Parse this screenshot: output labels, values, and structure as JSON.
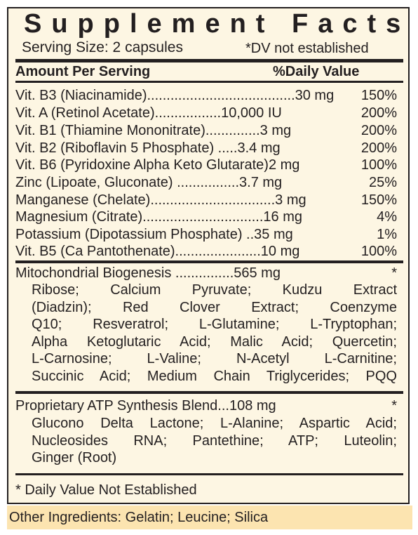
{
  "title": "Supplement Facts",
  "serving_size": "Serving Size: 2 capsules",
  "dv_note": "*DV not established",
  "header": {
    "amount": "Amount Per Serving",
    "daily_value": "%Daily Value"
  },
  "nutrients": [
    {
      "name": "Vit. B3 (Niacinamide)......................................30 mg",
      "dv": "150%"
    },
    {
      "name": "Vit. A (Retinol Acetate).................10,000  IU",
      "dv": "200%"
    },
    {
      "name": "Vit. B1 (Thiamine Mononitrate)..............3 mg",
      "dv": "200%"
    },
    {
      "name": "Vit. B2 (Riboflavin 5 Phosphate) .....3.4 mg",
      "dv": "200%"
    },
    {
      "name": "Vit. B6 (Pyridoxine Alpha Keto Glutarate)2 mg",
      "dv": "100%"
    },
    {
      "name": "Zinc (Lipoate, Gluconate) ................3.7 mg",
      "dv": "25%"
    },
    {
      "name": "Manganese (Chelate)................................3 mg",
      "dv": "150%"
    },
    {
      "name": "Magnesium (Citrate)...............................16 mg",
      "dv": "4%"
    },
    {
      "name": "Potassium (Dipotassium Phosphate) ..35 mg",
      "dv": "1%"
    },
    {
      "name": "Vit. B5 (Ca Pantothenate)......................10 mg",
      "dv": "100%"
    }
  ],
  "mito": {
    "heading": "Mitochondrial Biogenesis ...............565 mg",
    "star": "*",
    "lines": [
      "Ribose; Calcium Pyruvate; Kudzu Extract",
      "(Diadzin); Red Clover Extract; Coenzyme",
      "Q10; Resveratrol; L-Glutamine; L-Tryptophan;",
      "Alpha Ketoglutaric Acid; Malic Acid; Quercetin;",
      "L-Carnosine; L-Valine; N-Acetyl L-Carnitine;",
      "Succinic Acid; Medium Chain Triglycerides; PQQ"
    ]
  },
  "atp": {
    "heading": "Proprietary ATP Synthesis Blend...108 mg",
    "star": "*",
    "lines": [
      "Glucono Delta Lactone; L-Alanine; Aspartic Acid;",
      "Nucleosides RNA; Pantethine; ATP; Luteolin;",
      "Ginger (Root)"
    ]
  },
  "footnote": "* Daily Value Not Established",
  "other_ingredients": "Other Ingredients: Gelatin; Leucine; Silica"
}
